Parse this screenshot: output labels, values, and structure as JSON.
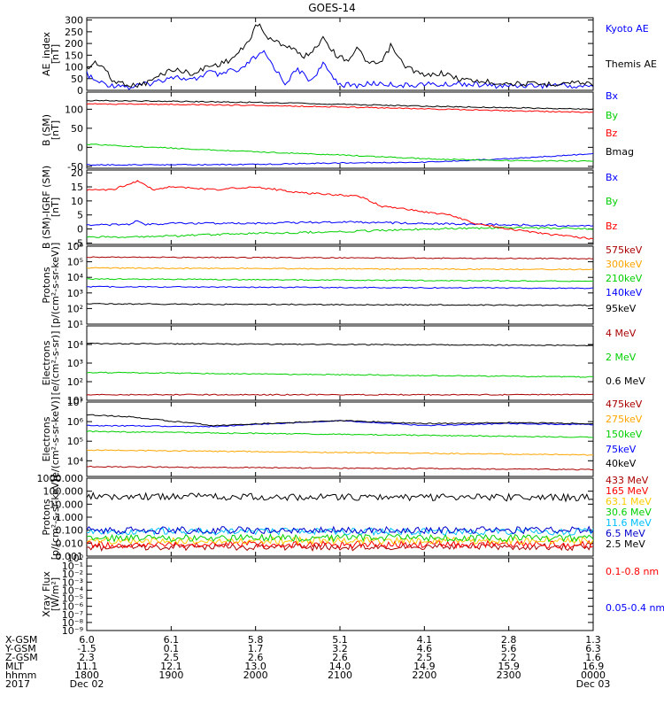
{
  "title": "GOES-14",
  "chart_data": [
    {
      "id": "ae",
      "type": "line",
      "ylabel": [
        "AE_index",
        "[nT]"
      ],
      "ylim": [
        0,
        310
      ],
      "yticks": [
        "0",
        "50",
        "100",
        "150",
        "200",
        "250",
        "300"
      ],
      "ytick_values": [
        0,
        50,
        100,
        150,
        200,
        250,
        300
      ],
      "series": [
        {
          "name": "Kyoto AE",
          "color": "#0000ff",
          "x": [
            0,
            0.1,
            0.2,
            0.3,
            0.4,
            0.5,
            0.6,
            0.75,
            0.9,
            1.0,
            1.1,
            1.2,
            1.3,
            1.45,
            1.6,
            1.7,
            1.8,
            1.95,
            2.1,
            2.2,
            2.35,
            2.5,
            2.65,
            2.8,
            3.0,
            3.2,
            3.4,
            3.6,
            3.8,
            4.0,
            4.2,
            4.4,
            4.6,
            4.8,
            5.0,
            5.2,
            5.4,
            5.6,
            5.8,
            6.0
          ],
          "values": [
            70,
            40,
            30,
            20,
            25,
            10,
            20,
            30,
            45,
            60,
            55,
            40,
            50,
            80,
            60,
            90,
            75,
            130,
            160,
            110,
            30,
            90,
            40,
            110,
            25,
            20,
            30,
            25,
            20,
            28,
            22,
            30,
            25,
            20,
            18,
            22,
            20,
            25,
            15,
            20
          ]
        },
        {
          "name": "Themis AE",
          "color": "#000000",
          "x": [
            0,
            0.1,
            0.2,
            0.3,
            0.45,
            0.55,
            0.7,
            0.85,
            1.0,
            1.15,
            1.3,
            1.4,
            1.55,
            1.7,
            1.8,
            1.9,
            2.0,
            2.05,
            2.15,
            2.3,
            2.45,
            2.55,
            2.7,
            2.8,
            2.95,
            3.1,
            3.2,
            3.35,
            3.5,
            3.6,
            3.75,
            3.85,
            4.0,
            4.2,
            4.4,
            4.6,
            4.8,
            5.0,
            5.2,
            5.4,
            5.6,
            5.8,
            6.0
          ],
          "values": [
            90,
            120,
            100,
            40,
            30,
            20,
            30,
            60,
            90,
            80,
            70,
            100,
            110,
            130,
            160,
            200,
            270,
            280,
            220,
            200,
            180,
            140,
            175,
            230,
            150,
            130,
            180,
            110,
            120,
            190,
            110,
            90,
            60,
            75,
            50,
            40,
            35,
            30,
            28,
            25,
            30,
            35,
            28
          ]
        }
      ]
    },
    {
      "id": "b",
      "type": "line",
      "ylabel": [
        "B (SM)",
        "[nT]"
      ],
      "ylim": [
        -55,
        145
      ],
      "yticks": [
        "-50",
        "0",
        "50",
        "100"
      ],
      "ytick_values": [
        -50,
        0,
        50,
        100
      ],
      "series": [
        {
          "name": "Bx",
          "color": "#0000ff",
          "x": [
            0,
            1,
            2,
            3,
            4,
            5,
            6
          ],
          "values": [
            -46,
            -46,
            -45,
            -41,
            -39,
            -30,
            -17
          ]
        },
        {
          "name": "By",
          "color": "#00d000",
          "x": [
            0,
            1,
            2,
            3,
            4,
            5,
            6
          ],
          "values": [
            8,
            -2,
            -12,
            -20,
            -30,
            -35,
            -36
          ]
        },
        {
          "name": "Bz",
          "color": "#ff0000",
          "x": [
            0,
            1,
            2,
            3,
            4,
            5,
            6
          ],
          "values": [
            114,
            113,
            110,
            106,
            101,
            96,
            92
          ]
        },
        {
          "name": "Bmag",
          "color": "#000000",
          "x": [
            0,
            1,
            2,
            3,
            4,
            5,
            6
          ],
          "values": [
            123,
            121,
            118,
            113,
            108,
            104,
            100
          ]
        }
      ]
    },
    {
      "id": "db",
      "type": "line",
      "ylabel": [
        "B (SM)-IGRF (SM)",
        "[nT]"
      ],
      "ylim": [
        -5.5,
        21
      ],
      "yticks": [
        "-5",
        "0",
        "5",
        "10",
        "15",
        "20"
      ],
      "ytick_values": [
        -5,
        0,
        5,
        10,
        15,
        20
      ],
      "series": [
        {
          "name": "Bx",
          "color": "#0000ff",
          "x": [
            0,
            0.5,
            0.6,
            0.7,
            1,
            2,
            3,
            4,
            5,
            6
          ],
          "values": [
            1.5,
            1.5,
            3,
            1.5,
            2,
            2,
            2.5,
            2,
            1.5,
            1
          ]
        },
        {
          "name": "By",
          "color": "#00d000",
          "x": [
            0,
            1,
            2,
            3,
            4,
            5,
            6
          ],
          "values": [
            -3,
            -2.5,
            -1.5,
            -1,
            0,
            0.5,
            0
          ]
        },
        {
          "name": "Bz",
          "color": "#ff0000",
          "x": [
            0,
            0.3,
            0.6,
            0.8,
            1,
            1.5,
            2,
            2.5,
            3,
            3.2,
            3.5,
            3.8,
            4,
            4.3,
            4.6,
            5,
            5.5,
            6
          ],
          "values": [
            14,
            14,
            17,
            14,
            15,
            14,
            15,
            13,
            12,
            12,
            8,
            7,
            6,
            5,
            2,
            0,
            -2,
            -3.5
          ]
        }
      ]
    },
    {
      "id": "protons_low",
      "type": "line",
      "ylog": true,
      "ylabel": [
        "Protons",
        "[p/(cm²-s-sr-keV)]"
      ],
      "ylim": [
        1,
        6
      ],
      "yticks": [
        "10¹",
        "10²",
        "10³",
        "10⁴",
        "10⁵",
        "10⁶"
      ],
      "ytick_values": [
        1,
        2,
        3,
        4,
        5,
        6
      ],
      "series": [
        {
          "name": "575keV",
          "color": "#aa0000",
          "x": [
            0,
            6
          ],
          "values": [
            5.3,
            5.2
          ]
        },
        {
          "name": "300keV",
          "color": "#ffa500",
          "x": [
            0,
            6
          ],
          "values": [
            4.6,
            4.5
          ]
        },
        {
          "name": "210keV",
          "color": "#00d000",
          "x": [
            0,
            6
          ],
          "values": [
            3.9,
            3.75
          ]
        },
        {
          "name": "140keV",
          "color": "#0000ff",
          "x": [
            0,
            6
          ],
          "values": [
            3.4,
            3.3
          ]
        },
        {
          "name": "95keV",
          "color": "#000000",
          "x": [
            0,
            6
          ],
          "values": [
            2.3,
            2.2
          ]
        }
      ]
    },
    {
      "id": "electrons_mev",
      "type": "line",
      "ylog": true,
      "ylabel": [
        "Electrons",
        "[e/(cm²-s-sr)]"
      ],
      "ylim": [
        1,
        5
      ],
      "yticks": [
        "10¹",
        "10²",
        "10³",
        "10⁴"
      ],
      "ytick_values": [
        1,
        2,
        3,
        4
      ],
      "series": [
        {
          "name": "4 MeV",
          "color": "#aa0000",
          "x": [
            0,
            6
          ],
          "values": [
            1.3,
            1.3
          ]
        },
        {
          "name": "2 MeV",
          "color": "#00d000",
          "x": [
            0,
            6
          ],
          "values": [
            2.5,
            2.25
          ]
        },
        {
          "name": "0.6 MeV",
          "color": "#000000",
          "x": [
            0,
            6
          ],
          "values": [
            4.05,
            3.95
          ]
        }
      ]
    },
    {
      "id": "electrons_kev",
      "type": "line",
      "ylog": true,
      "ylabel": [
        "Electrons",
        "[e/(cm²-s-sr-keV)]"
      ],
      "ylim": [
        3.2,
        7
      ],
      "yticks": [
        "10⁴",
        "10⁵",
        "10⁶",
        "10⁷"
      ],
      "ytick_values": [
        4,
        5,
        6,
        7
      ],
      "series": [
        {
          "name": "475keV",
          "color": "#aa0000",
          "x": [
            0,
            6
          ],
          "values": [
            3.7,
            3.55
          ]
        },
        {
          "name": "275keV",
          "color": "#ffa500",
          "x": [
            0,
            6
          ],
          "values": [
            4.55,
            4.3
          ]
        },
        {
          "name": "150keV",
          "color": "#00d000",
          "x": [
            0,
            6
          ],
          "values": [
            5.5,
            5.2
          ]
        },
        {
          "name": "75keV",
          "color": "#0000ff",
          "x": [
            0,
            1.5,
            3,
            4,
            5,
            6
          ],
          "values": [
            5.8,
            5.75,
            6.05,
            5.8,
            5.9,
            5.85
          ]
        },
        {
          "name": "40keV",
          "color": "#000000",
          "x": [
            0,
            0.5,
            1.5,
            3,
            4,
            5,
            6
          ],
          "values": [
            6.35,
            6.25,
            5.8,
            6.05,
            5.9,
            5.95,
            5.9
          ]
        }
      ]
    },
    {
      "id": "protons_high",
      "type": "line",
      "ylog": true,
      "ylabel": [
        "Protons",
        "[p/(cm²-s-sr-keV)]"
      ],
      "ylim": [
        -3,
        3
      ],
      "yticks": [
        "0.001",
        "0.010",
        "0.100",
        "1.000",
        "10.000",
        "100.000",
        "1000.000"
      ],
      "ytick_values": [
        -3,
        -2,
        -1,
        0,
        1,
        2,
        3
      ],
      "series": [
        {
          "name": "433 MeV",
          "color": "#aa0000",
          "x": [
            0,
            6
          ],
          "values": [
            -2.3,
            -2.3
          ]
        },
        {
          "name": "165 MeV",
          "color": "#ff0000",
          "x": [
            0,
            6
          ],
          "values": [
            -2.1,
            -2.1
          ]
        },
        {
          "name": "63.1 MeV",
          "color": "#ffcc00",
          "x": [
            0,
            6
          ],
          "values": [
            -1.8,
            -1.8
          ]
        },
        {
          "name": "30.6 MeV",
          "color": "#00d000",
          "x": [
            0,
            6
          ],
          "values": [
            -1.6,
            -1.6
          ]
        },
        {
          "name": "11.6 MeV",
          "color": "#00bfff",
          "x": [
            0,
            6
          ],
          "values": [
            -1.1,
            -1.1
          ]
        },
        {
          "name": "6.5 MeV",
          "color": "#0000cc",
          "x": [
            0,
            6
          ],
          "values": [
            -1.0,
            -1.0
          ]
        },
        {
          "name": "2.5 MeV",
          "color": "#000000",
          "x": [
            0,
            6
          ],
          "values": [
            1.6,
            1.5
          ]
        }
      ]
    },
    {
      "id": "xray",
      "type": "line",
      "ylog": true,
      "ylabel": [
        "Xray Flux",
        "[W/m²]"
      ],
      "ylim": [
        -9,
        0
      ],
      "yticks": [
        "10⁻⁹",
        "10⁻⁸",
        "10⁻⁷",
        "10⁻⁶",
        "10⁻⁵",
        "10⁻⁴",
        "10⁻³",
        "10⁻²",
        "10⁻¹",
        "10⁰"
      ],
      "ytick_values": [
        -9,
        -8,
        -7,
        -6,
        -5,
        -4,
        -3,
        -2,
        -1,
        0
      ],
      "series": [
        {
          "name": "0.1-0.8 nm",
          "color": "#ff0000",
          "x": [],
          "values": []
        },
        {
          "name": "0.05-0.4 nm",
          "color": "#0000ff",
          "x": [],
          "values": []
        }
      ]
    }
  ],
  "x_axis": {
    "xlim": [
      0,
      6
    ],
    "row_labels": [
      "X-GSM",
      "Y-GSM",
      "Z-GSM",
      "MLT",
      "hhmm",
      "2017"
    ],
    "columns": [
      {
        "x": 0,
        "values": [
          "6.0",
          "-1.5",
          "2.3",
          "11.1",
          "1800",
          "Dec 02"
        ]
      },
      {
        "x": 1,
        "values": [
          "6.1",
          "0.1",
          "2.5",
          "12.1",
          "1900",
          ""
        ]
      },
      {
        "x": 2,
        "values": [
          "5.8",
          "1.7",
          "2.6",
          "13.0",
          "2000",
          ""
        ]
      },
      {
        "x": 3,
        "values": [
          "5.1",
          "3.2",
          "2.6",
          "14.0",
          "2100",
          ""
        ]
      },
      {
        "x": 4,
        "values": [
          "4.1",
          "4.6",
          "2.5",
          "14.9",
          "2200",
          ""
        ]
      },
      {
        "x": 5,
        "values": [
          "2.8",
          "5.6",
          "2.2",
          "15.9",
          "2300",
          ""
        ]
      },
      {
        "x": 6,
        "values": [
          "1.3",
          "6.3",
          "1.6",
          "16.9",
          "0000",
          "Dec 03"
        ]
      }
    ]
  }
}
